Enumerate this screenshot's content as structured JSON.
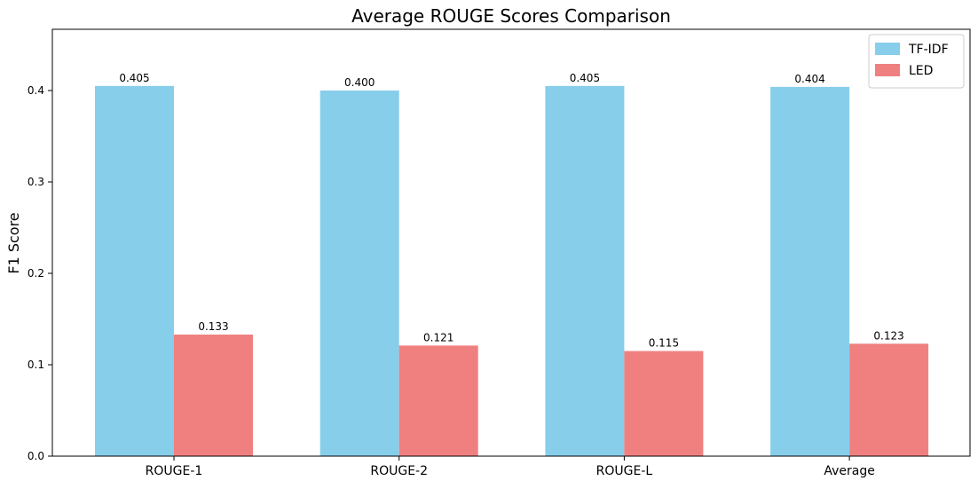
{
  "chart_data": {
    "type": "bar",
    "title": "Average ROUGE Scores Comparison",
    "xlabel": "",
    "ylabel": "F1 Score",
    "categories": [
      "ROUGE-1",
      "ROUGE-2",
      "ROUGE-L",
      "Average"
    ],
    "series": [
      {
        "name": "TF-IDF",
        "values": [
          0.405,
          0.4,
          0.405,
          0.404
        ],
        "labels": [
          "0.405",
          "0.400",
          "0.405",
          "0.404"
        ],
        "color": "#87CEEB"
      },
      {
        "name": "LED",
        "values": [
          0.133,
          0.121,
          0.115,
          0.123
        ],
        "labels": [
          "0.133",
          "0.121",
          "0.115",
          "0.123"
        ],
        "color": "#F08080"
      }
    ],
    "ylim": [
      0,
      0.467
    ],
    "yticks": [
      0.0,
      0.1,
      0.2,
      0.3,
      0.4
    ],
    "ytick_labels": [
      "0.0",
      "0.1",
      "0.2",
      "0.3",
      "0.4"
    ],
    "grid": false,
    "legend_position": "top-right"
  }
}
